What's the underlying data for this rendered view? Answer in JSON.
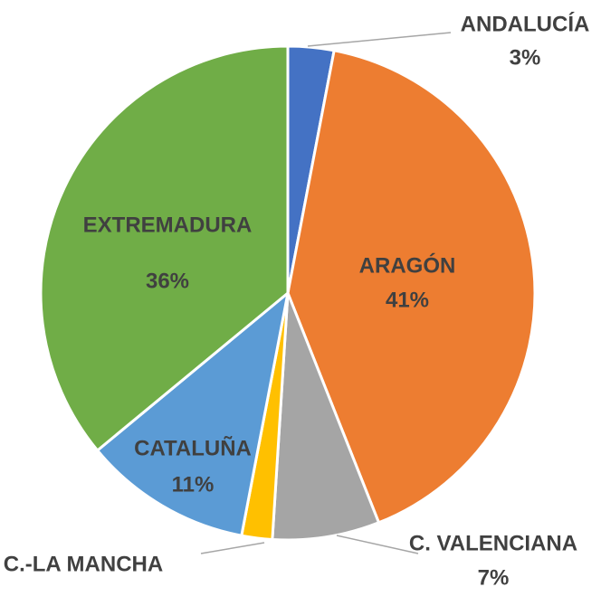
{
  "chart_data": {
    "type": "pie",
    "categories": [
      "ANDALUCÍA",
      "ARAGÓN",
      "C. VALENCIANA",
      "C.-LA MANCHA",
      "CATALUÑA",
      "EXTREMADURA"
    ],
    "values": [
      3,
      41,
      7,
      2,
      11,
      36
    ],
    "value_labels": [
      "3%",
      "41%",
      "7%",
      null,
      "11%",
      "36%"
    ],
    "colors": [
      "#4472c4",
      "#ed7d31",
      "#a5a5a5",
      "#ffc000",
      "#5b9bd5",
      "#70ad47"
    ]
  }
}
